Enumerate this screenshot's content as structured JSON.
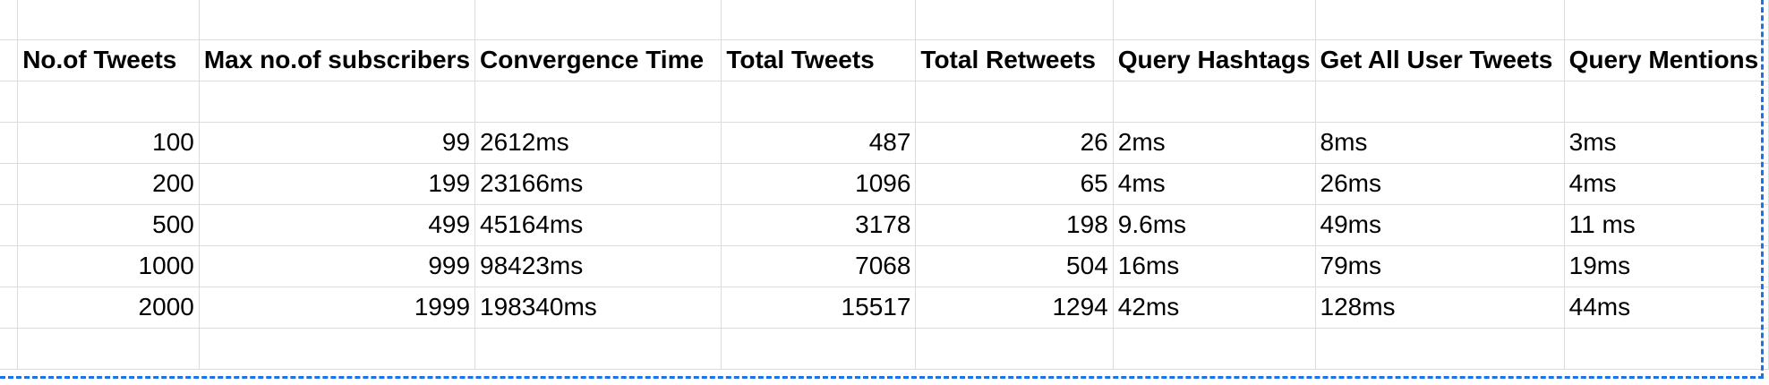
{
  "sheet": {
    "headers": [
      "No.of Tweets",
      "Max no.of subscribers",
      "Convergence Time",
      "Total Tweets",
      "Total Retweets",
      "Query Hashtags",
      "Get All User Tweets",
      "Query Mentions"
    ],
    "rows": [
      [
        "100",
        "99",
        "2612ms",
        "487",
        "26",
        "2ms",
        "8ms",
        "3ms"
      ],
      [
        "200",
        "199",
        "23166ms",
        "1096",
        "65",
        "4ms",
        "26ms",
        "4ms"
      ],
      [
        "500",
        "499",
        "45164ms",
        "3178",
        "198",
        "9.6ms",
        "49ms",
        "11 ms"
      ],
      [
        "1000",
        "999",
        "98423ms",
        "7068",
        "504",
        "16ms",
        "79ms",
        "19ms"
      ],
      [
        "2000",
        "1999",
        "198340ms",
        "15517",
        "1294",
        "42ms",
        "128ms",
        "44ms"
      ]
    ],
    "colors": {
      "gridline": "#dadce0",
      "selection": "#1a73e8",
      "text": "#000000"
    }
  }
}
